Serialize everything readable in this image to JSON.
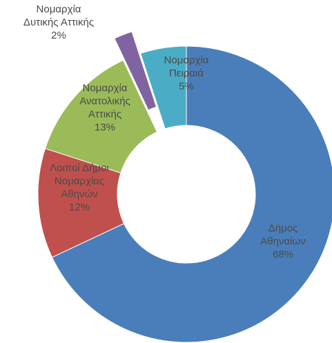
{
  "chart_data": {
    "type": "pie",
    "donut": true,
    "categories": [
      "Δήμος Αθηναίων",
      "Λοιποί Δήμοι Νομαρχίας Αθηνών",
      "Νομαρχία Ανατολικής Αττικής",
      "Νομαρχία Δυτικής Αττικής",
      "Νομαρχία Πειραιά"
    ],
    "values": [
      68,
      12,
      13,
      2,
      5
    ],
    "labels": [
      [
        "Δήμος",
        "Αθηναίων",
        "68%"
      ],
      [
        "Λοιποί Δήμοι",
        "Νομαρχίας",
        "Αθηνών",
        "12%"
      ],
      [
        "Νομαρχία",
        "Ανατολικής",
        "Αττικής",
        "13%"
      ],
      [
        "Νομαρχία",
        "Δυτικής Αττικής",
        "2%"
      ],
      [
        "Νομαρχία",
        "Πειραιά",
        "5%"
      ]
    ],
    "colors": [
      "#4a7ebb",
      "#c0504d",
      "#9bbb59",
      "#8064a2",
      "#4bacc6"
    ],
    "exploded": [
      false,
      false,
      false,
      true,
      false
    ],
    "legend": "none",
    "title": ""
  }
}
